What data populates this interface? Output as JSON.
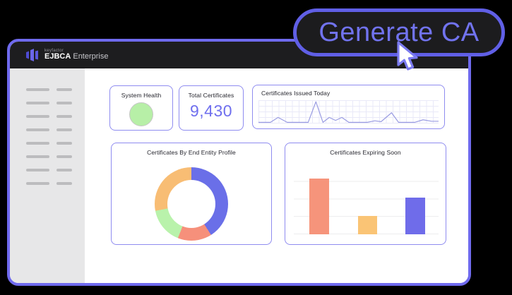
{
  "cta": {
    "label": "Generate CA"
  },
  "brand": {
    "supertitle": "keyfactor",
    "name_bold": "EJBCA",
    "name_rest": " Enterprise"
  },
  "sidebar": {
    "skeleton_item_count": 8
  },
  "cards": {
    "system_health": {
      "title": "System Health",
      "status_color": "#b7efa7"
    },
    "total_certificates": {
      "title": "Total Certificates",
      "value": "9,430"
    },
    "issued_today": {
      "title": "Certificates Issued Today"
    },
    "by_profile": {
      "title": "Certificates By End Entity Profile"
    },
    "expiring_soon": {
      "title": "Certificates Expiring Soon"
    }
  },
  "chart_data": [
    {
      "type": "line",
      "title": "Certificates Issued Today",
      "x": [
        0,
        6.6,
        10.9,
        16,
        27.6,
        31.9,
        35.8,
        39.3,
        42.8,
        46.3,
        50.2,
        60.3,
        64.6,
        68.1,
        73.9,
        77.8,
        86.8,
        91.4,
        96.1,
        100
      ],
      "values": [
        0.3,
        0.3,
        2.6,
        0.3,
        0.3,
        10,
        0.3,
        2.6,
        1.2,
        2.6,
        0.3,
        0.3,
        1.0,
        0.6,
        4.8,
        0.3,
        0.3,
        1.5,
        0.8,
        0.8
      ],
      "ylim": [
        0,
        10
      ],
      "grid": true,
      "line_color": "#9a9ce2",
      "grid_color": "#e9e9f8"
    },
    {
      "type": "pie",
      "donut": true,
      "title": "Certificates By End Entity Profile",
      "segments": [
        {
          "value": 41,
          "color": "#6a6fe8"
        },
        {
          "value": 15,
          "color": "#f6907b"
        },
        {
          "value": 16,
          "color": "#b9f2ab"
        },
        {
          "value": 28,
          "color": "#f8bd74"
        }
      ],
      "start_angle_deg": 0,
      "legend": "none"
    },
    {
      "type": "bar",
      "title": "Certificates Expiring Soon",
      "values": [
        80,
        26,
        53
      ],
      "colors": [
        "#f6947b",
        "#fac475",
        "#6f6cea"
      ],
      "bar_centers_pct": [
        17.6,
        51,
        84
      ],
      "ylim": [
        0,
        100
      ],
      "gridlines": 5,
      "grid_color": "#ededee"
    }
  ]
}
